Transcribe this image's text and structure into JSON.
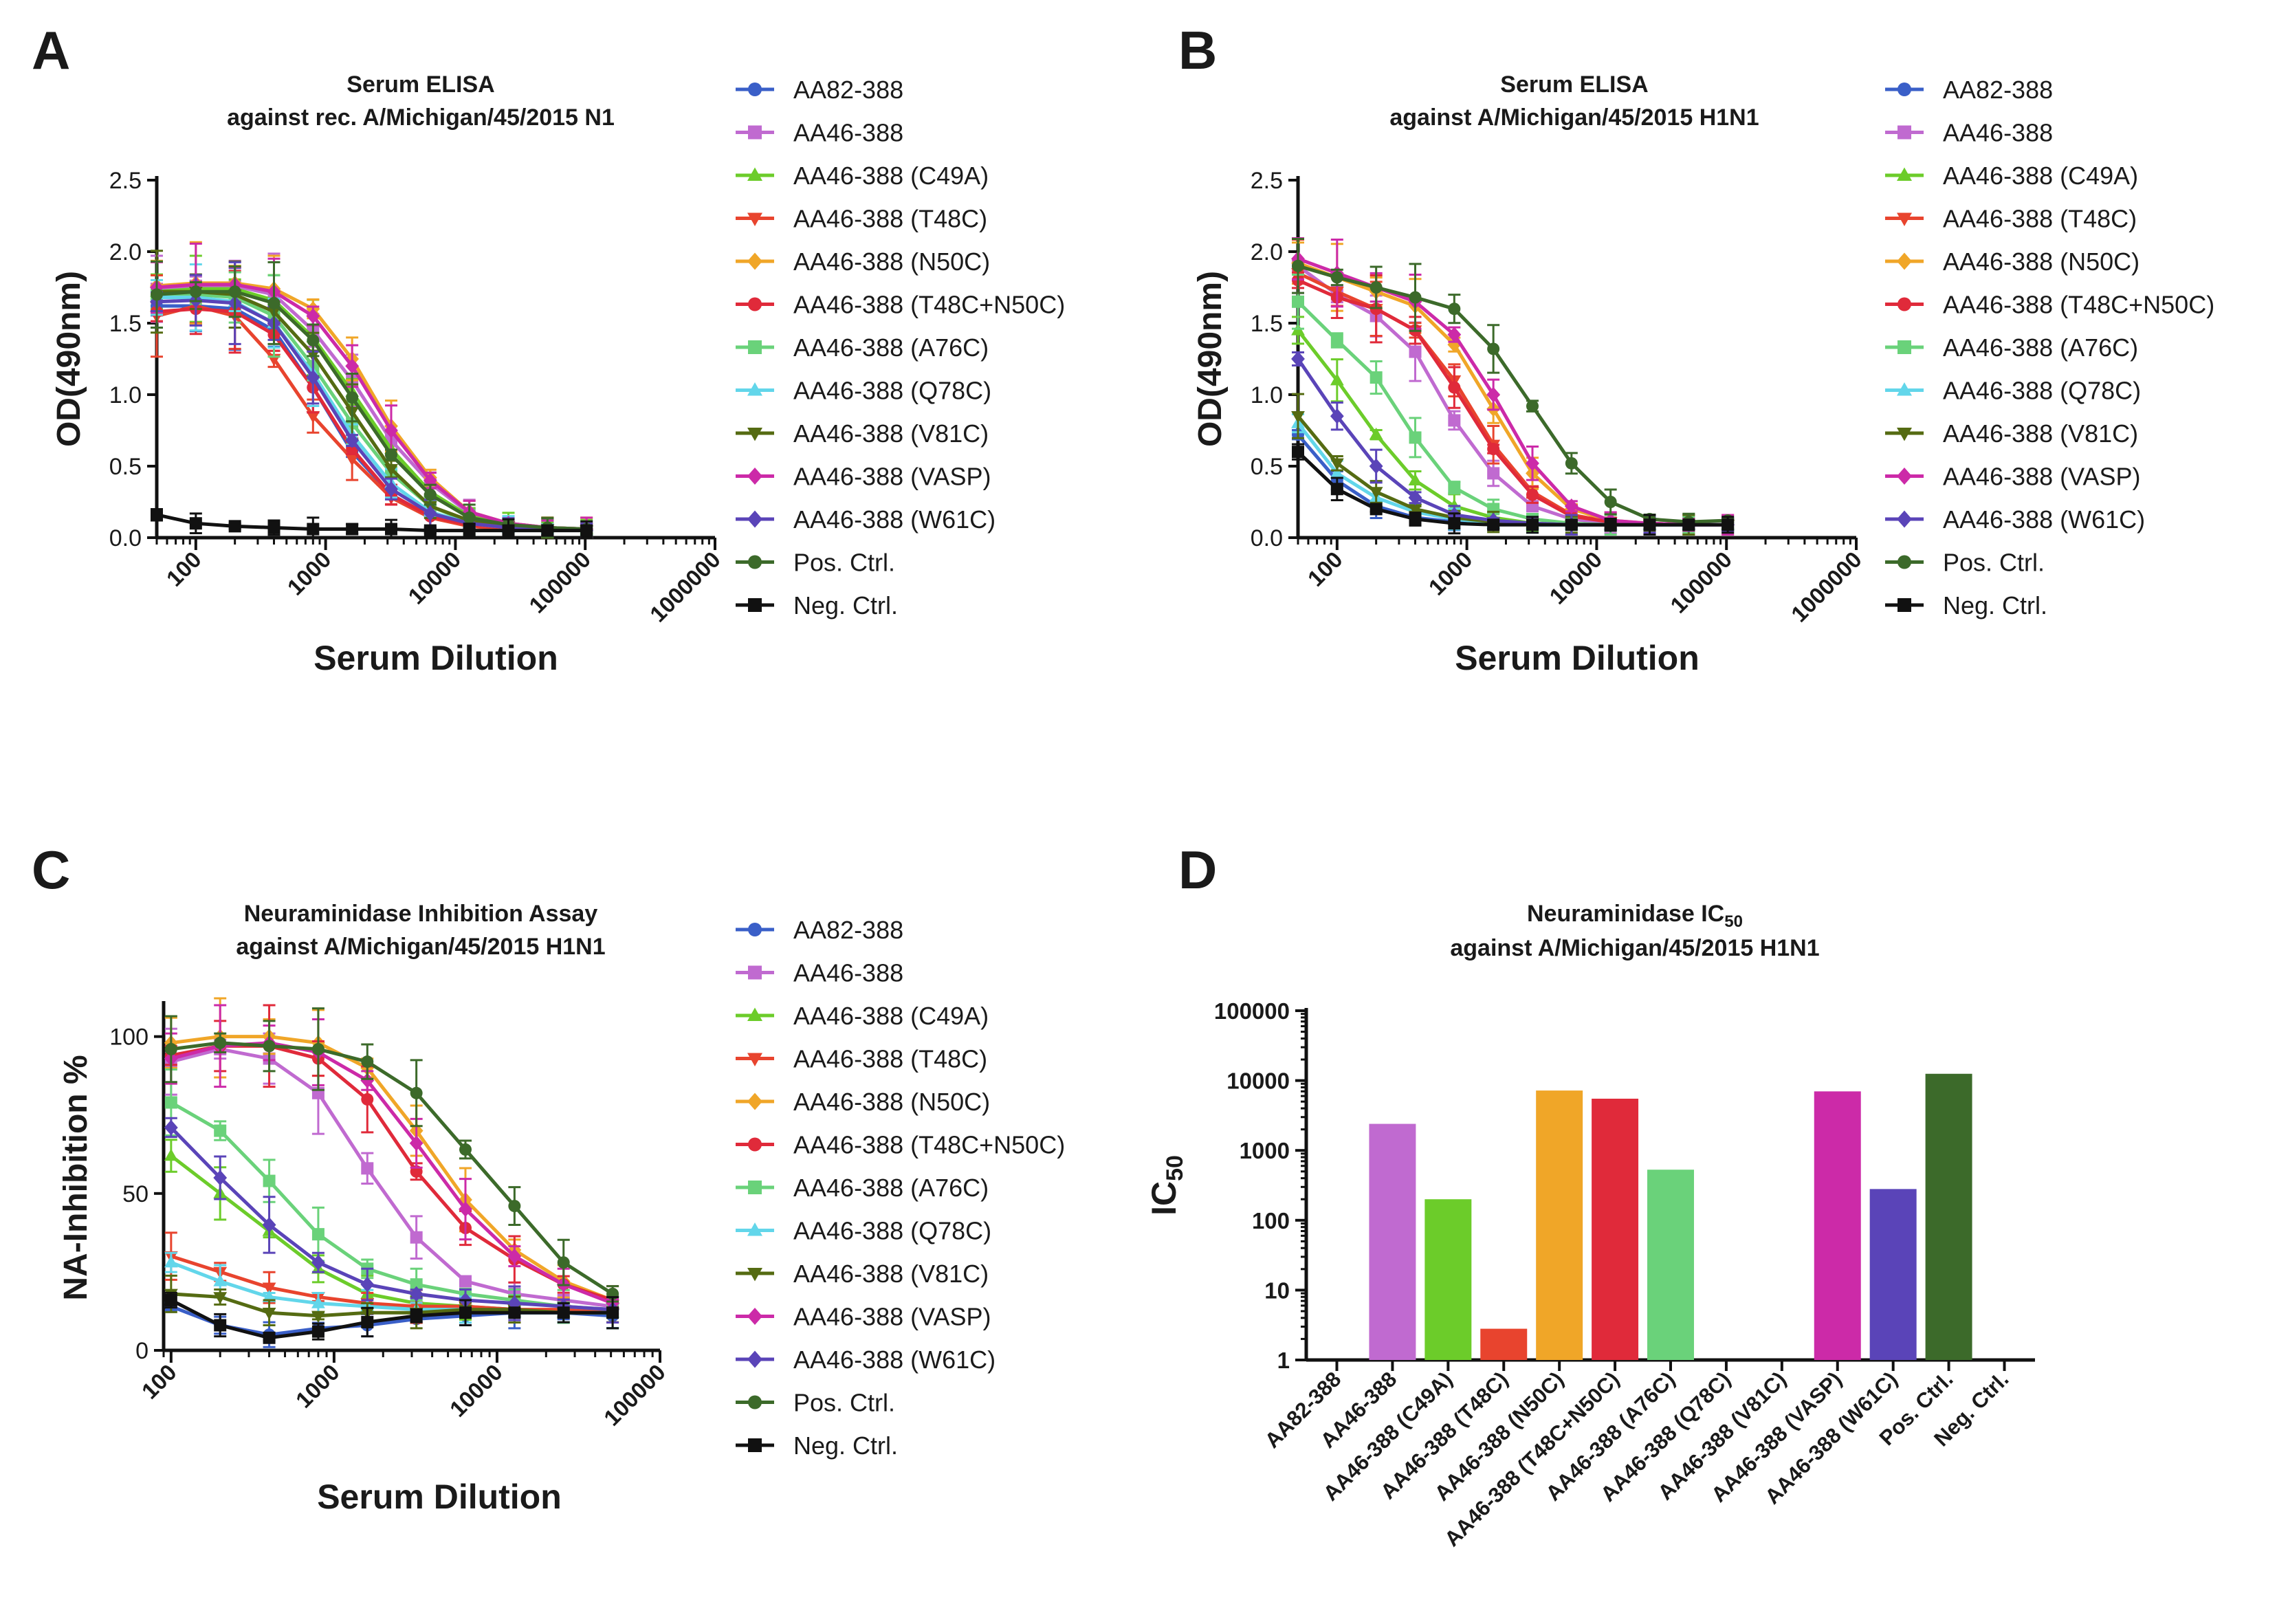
{
  "panels": [
    {
      "letter": "A",
      "title": [
        "Serum ELISA",
        "against rec. A/Michigan/45/2015 N1"
      ]
    },
    {
      "letter": "B",
      "title": [
        "Serum ELISA",
        "against A/Michigan/45/2015 H1N1"
      ]
    },
    {
      "letter": "C",
      "title": [
        "Neuraminidase Inhibition Assay",
        "against A/Michigan/45/2015 H1N1"
      ]
    },
    {
      "letter": "D",
      "title_main": "Neuraminidase IC",
      "title_sub": "50",
      "title_line2": "against A/Michigan/45/2015 H1N1"
    }
  ],
  "legend": {
    "labels": [
      "AA82-388",
      "AA46-388",
      "AA46-388 (C49A)",
      "AA46-388 (T48C)",
      "AA46-388 (N50C)",
      "AA46-388 (T48C+N50C)",
      "AA46-388 (A76C)",
      "AA46-388 (Q78C)",
      "AA46-388 (V81C)",
      "AA46-388 (VASP)",
      "AA46-388 (W61C)",
      "Pos. Ctrl.",
      "Neg. Ctrl."
    ],
    "colors": [
      "#3a5fc8",
      "#c06ad0",
      "#6ccc2a",
      "#e8442e",
      "#f0a628",
      "#e02a3a",
      "#6ad27a",
      "#62d6ea",
      "#556b12",
      "#cc2aa8",
      "#5a44b8",
      "#3c6a2a",
      "#111111"
    ],
    "markers": [
      "circle",
      "square",
      "triangle",
      "triangle-down",
      "diamond",
      "circle",
      "square",
      "triangle",
      "triangle-down",
      "diamond",
      "diamond",
      "circle",
      "square"
    ]
  },
  "chart_data": [
    {
      "type": "line",
      "title": "Serum ELISA against rec. A/Michigan/45/2015 N1",
      "xlabel": "Serum Dilution",
      "ylabel": "OD(490nm)",
      "xscale": "log",
      "xlim": [
        50,
        1000000
      ],
      "ylim": [
        0,
        2.5
      ],
      "xticks": [
        100,
        1000,
        10000,
        100000,
        1000000
      ],
      "xtick_labels": [
        "100",
        "1000",
        "10000",
        "100000",
        "1000000"
      ],
      "yticks": [
        0.0,
        0.5,
        1.0,
        1.5,
        2.0,
        2.5
      ],
      "ytick_labels": [
        "0.0",
        "0.5",
        "1.0",
        "1.5",
        "2.0",
        "2.5"
      ],
      "x": [
        50,
        100,
        200,
        400,
        800,
        1600,
        3200,
        6400,
        12800,
        25600,
        51200,
        102400
      ],
      "series": [
        {
          "name": "AA82-388",
          "values": [
            1.62,
            1.62,
            1.6,
            1.45,
            1.05,
            0.6,
            0.3,
            0.15,
            0.09,
            0.07,
            0.06,
            0.05
          ]
        },
        {
          "name": "AA46-388",
          "values": [
            1.74,
            1.76,
            1.76,
            1.7,
            1.45,
            1.1,
            0.68,
            0.38,
            0.17,
            0.1,
            0.07,
            0.06
          ]
        },
        {
          "name": "AA46-388 (C49A)",
          "values": [
            1.72,
            1.74,
            1.74,
            1.66,
            1.4,
            1.02,
            0.62,
            0.32,
            0.15,
            0.09,
            0.07,
            0.06
          ]
        },
        {
          "name": "AA46-388 (T48C)",
          "values": [
            1.55,
            1.62,
            1.55,
            1.25,
            0.85,
            0.55,
            0.28,
            0.14,
            0.08,
            0.06,
            0.06,
            0.05
          ]
        },
        {
          "name": "AA46-388 (N50C)",
          "values": [
            1.76,
            1.78,
            1.78,
            1.74,
            1.6,
            1.25,
            0.78,
            0.42,
            0.18,
            0.1,
            0.07,
            0.06
          ]
        },
        {
          "name": "AA46-388 (T48C+N50C)",
          "values": [
            1.58,
            1.6,
            1.58,
            1.42,
            1.05,
            0.62,
            0.3,
            0.15,
            0.09,
            0.07,
            0.06,
            0.05
          ]
        },
        {
          "name": "AA46-388 (A76C)",
          "values": [
            1.7,
            1.7,
            1.68,
            1.55,
            1.2,
            0.8,
            0.45,
            0.22,
            0.11,
            0.08,
            0.06,
            0.05
          ]
        },
        {
          "name": "AA46-388 (Q78C)",
          "values": [
            1.68,
            1.68,
            1.65,
            1.5,
            1.15,
            0.72,
            0.38,
            0.18,
            0.1,
            0.07,
            0.06,
            0.05
          ]
        },
        {
          "name": "AA46-388 (V81C)",
          "values": [
            1.72,
            1.72,
            1.7,
            1.58,
            1.28,
            0.88,
            0.48,
            0.22,
            0.12,
            0.08,
            0.06,
            0.05
          ]
        },
        {
          "name": "AA46-388 (VASP)",
          "values": [
            1.75,
            1.77,
            1.77,
            1.72,
            1.55,
            1.2,
            0.75,
            0.4,
            0.18,
            0.1,
            0.07,
            0.06
          ]
        },
        {
          "name": "AA46-388 (W61C)",
          "values": [
            1.65,
            1.66,
            1.64,
            1.5,
            1.12,
            0.68,
            0.34,
            0.17,
            0.1,
            0.07,
            0.06,
            0.05
          ]
        },
        {
          "name": "Pos. Ctrl.",
          "values": [
            1.7,
            1.72,
            1.72,
            1.64,
            1.38,
            0.98,
            0.58,
            0.3,
            0.14,
            0.09,
            0.07,
            0.06
          ]
        },
        {
          "name": "Neg. Ctrl.",
          "values": [
            0.16,
            0.1,
            0.08,
            0.07,
            0.06,
            0.06,
            0.06,
            0.05,
            0.05,
            0.05,
            0.05,
            0.05
          ]
        }
      ]
    },
    {
      "type": "line",
      "title": "Serum ELISA against A/Michigan/45/2015 H1N1",
      "xlabel": "Serum Dilution",
      "ylabel": "OD(490nm)",
      "xscale": "log",
      "xlim": [
        50,
        1000000
      ],
      "ylim": [
        0,
        2.5
      ],
      "xticks": [
        100,
        1000,
        10000,
        100000,
        1000000
      ],
      "xtick_labels": [
        "100",
        "1000",
        "10000",
        "100000",
        "1000000"
      ],
      "yticks": [
        0.0,
        0.5,
        1.0,
        1.5,
        2.0,
        2.5
      ],
      "ytick_labels": [
        "0.0",
        "0.5",
        "1.0",
        "1.5",
        "2.0",
        "2.5"
      ],
      "x": [
        50,
        100,
        200,
        400,
        800,
        1600,
        3200,
        6400,
        12800,
        25600,
        51200,
        102400
      ],
      "series": [
        {
          "name": "AA82-388",
          "values": [
            0.72,
            0.4,
            0.22,
            0.14,
            0.11,
            0.1,
            0.09,
            0.09,
            0.09,
            0.09,
            0.09,
            0.09
          ]
        },
        {
          "name": "AA46-388",
          "values": [
            1.9,
            1.7,
            1.55,
            1.3,
            0.82,
            0.45,
            0.22,
            0.13,
            0.1,
            0.09,
            0.09,
            0.09
          ]
        },
        {
          "name": "AA46-388 (C49A)",
          "values": [
            1.45,
            1.1,
            0.72,
            0.4,
            0.22,
            0.14,
            0.1,
            0.09,
            0.09,
            0.09,
            0.09,
            0.09
          ]
        },
        {
          "name": "AA46-388 (T48C)",
          "values": [
            1.85,
            1.72,
            1.6,
            1.45,
            1.1,
            0.65,
            0.32,
            0.16,
            0.11,
            0.1,
            0.09,
            0.09
          ]
        },
        {
          "name": "AA46-388 (N50C)",
          "values": [
            1.92,
            1.82,
            1.72,
            1.62,
            1.35,
            0.9,
            0.45,
            0.2,
            0.12,
            0.1,
            0.09,
            0.09
          ]
        },
        {
          "name": "AA46-388 (T48C+N50C)",
          "values": [
            1.8,
            1.68,
            1.6,
            1.45,
            1.05,
            0.62,
            0.3,
            0.15,
            0.11,
            0.1,
            0.09,
            0.09
          ]
        },
        {
          "name": "AA46-388 (A76C)",
          "values": [
            1.65,
            1.38,
            1.12,
            0.7,
            0.35,
            0.2,
            0.13,
            0.1,
            0.09,
            0.09,
            0.09,
            0.09
          ]
        },
        {
          "name": "AA46-388 (Q78C)",
          "values": [
            0.8,
            0.45,
            0.28,
            0.18,
            0.13,
            0.1,
            0.09,
            0.09,
            0.09,
            0.09,
            0.09,
            0.09
          ]
        },
        {
          "name": "AA46-388 (V81C)",
          "values": [
            0.85,
            0.52,
            0.32,
            0.2,
            0.14,
            0.11,
            0.1,
            0.09,
            0.09,
            0.09,
            0.09,
            0.09
          ]
        },
        {
          "name": "AA46-388 (VASP)",
          "values": [
            1.95,
            1.85,
            1.75,
            1.65,
            1.42,
            1.0,
            0.52,
            0.22,
            0.12,
            0.1,
            0.09,
            0.09
          ]
        },
        {
          "name": "AA46-388 (W61C)",
          "values": [
            1.25,
            0.85,
            0.5,
            0.28,
            0.16,
            0.12,
            0.1,
            0.09,
            0.09,
            0.09,
            0.09,
            0.09
          ]
        },
        {
          "name": "Pos. Ctrl.",
          "values": [
            1.9,
            1.82,
            1.75,
            1.68,
            1.6,
            1.32,
            0.92,
            0.52,
            0.25,
            0.13,
            0.11,
            0.12
          ]
        },
        {
          "name": "Neg. Ctrl.",
          "values": [
            0.6,
            0.34,
            0.2,
            0.13,
            0.1,
            0.09,
            0.09,
            0.09,
            0.09,
            0.09,
            0.09,
            0.09
          ]
        }
      ]
    },
    {
      "type": "line",
      "title": "Neuraminidase Inhibition Assay against A/Michigan/45/2015 H1N1",
      "xlabel": "Serum Dilution",
      "ylabel": "NA-Inhibition %",
      "xscale": "log",
      "xlim": [
        90,
        100000
      ],
      "ylim": [
        0,
        110
      ],
      "xticks": [
        100,
        1000,
        10000,
        100000
      ],
      "xtick_labels": [
        "100",
        "1000",
        "10000",
        "100000"
      ],
      "yticks": [
        0,
        50,
        100
      ],
      "ytick_labels": [
        "0",
        "50",
        "100"
      ],
      "x": [
        100,
        200,
        400,
        800,
        1600,
        3200,
        6400,
        12800,
        25600,
        51200
      ],
      "series": [
        {
          "name": "AA82-388",
          "values": [
            14,
            8,
            5,
            7,
            8,
            10,
            11,
            12,
            12,
            11
          ]
        },
        {
          "name": "AA46-388",
          "values": [
            92,
            96,
            93,
            82,
            58,
            36,
            22,
            18,
            16,
            14
          ]
        },
        {
          "name": "AA46-388 (C49A)",
          "values": [
            62,
            50,
            38,
            26,
            18,
            15,
            14,
            13,
            12,
            12
          ]
        },
        {
          "name": "AA46-388 (T48C)",
          "values": [
            30,
            25,
            20,
            17,
            15,
            14,
            14,
            13,
            13,
            12
          ]
        },
        {
          "name": "AA46-388 (N50C)",
          "values": [
            98,
            100,
            100,
            98,
            90,
            70,
            48,
            32,
            22,
            16
          ]
        },
        {
          "name": "AA46-388 (T48C+N50C)",
          "values": [
            94,
            97,
            97,
            93,
            80,
            57,
            39,
            29,
            21,
            16
          ]
        },
        {
          "name": "AA46-388 (A76C)",
          "values": [
            79,
            70,
            54,
            37,
            26,
            21,
            18,
            16,
            14,
            13
          ]
        },
        {
          "name": "AA46-388 (Q78C)",
          "values": [
            28,
            22,
            17,
            15,
            14,
            13,
            13,
            12,
            12,
            12
          ]
        },
        {
          "name": "AA46-388 (V81C)",
          "values": [
            18,
            17,
            12,
            11,
            12,
            12,
            13,
            13,
            12,
            12
          ]
        },
        {
          "name": "AA46-388 (VASP)",
          "values": [
            93,
            97,
            98,
            95,
            86,
            66,
            45,
            30,
            21,
            15
          ]
        },
        {
          "name": "AA46-388 (W61C)",
          "values": [
            71,
            55,
            40,
            28,
            21,
            18,
            16,
            15,
            14,
            13
          ]
        },
        {
          "name": "Pos. Ctrl.",
          "values": [
            96,
            98,
            97,
            96,
            92,
            82,
            64,
            46,
            28,
            18
          ]
        },
        {
          "name": "Neg. Ctrl.",
          "values": [
            16,
            8,
            4,
            6,
            9,
            11,
            12,
            12,
            12,
            12
          ]
        }
      ]
    },
    {
      "type": "bar",
      "title": "Neuraminidase IC50 against A/Michigan/45/2015 H1N1",
      "xlabel": "",
      "ylabel": "IC50",
      "yscale": "log",
      "ylim": [
        1,
        100000
      ],
      "yticks": [
        1,
        10,
        100,
        1000,
        10000,
        100000
      ],
      "ytick_labels": [
        "1",
        "10",
        "100",
        "1000",
        "10000",
        "100000"
      ],
      "ylabel_main": "IC",
      "ylabel_sub": "50",
      "categories": [
        "AA82-388",
        "AA46-388",
        "AA46-388 (C49A)",
        "AA46-388 (T48C)",
        "AA46-388 (N50C)",
        "AA46-388 (T48C+N50C)",
        "AA46-388 (A76C)",
        "AA46-388 (Q78C)",
        "AA46-388 (V81C)",
        "AA46-388 (VASP)",
        "AA46-388 (W61C)",
        "Pos. Ctrl.",
        "Neg. Ctrl."
      ],
      "values": [
        null,
        2400,
        200,
        2.8,
        7200,
        5500,
        530,
        null,
        null,
        7000,
        280,
        12500,
        null
      ]
    }
  ]
}
